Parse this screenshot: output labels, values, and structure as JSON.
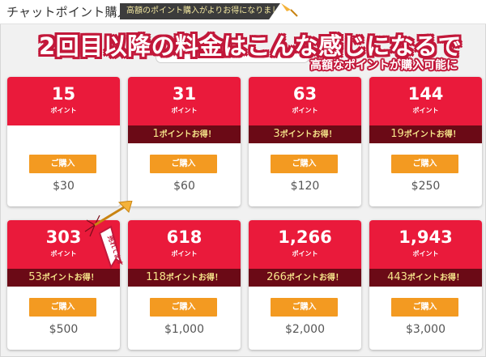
{
  "header": {
    "title": "チャットポイント購入",
    "promo": "高額のポイント購入がよりお得になりました！"
  },
  "overlay": {
    "headline": "2回目以降の料金はこんな感じになるで",
    "subline": "高額なポイントが購入可能に"
  },
  "hot_badge": "売れてます",
  "colors": {
    "card_header": "#ea1a3b",
    "bonus_strip": "#6b0a16",
    "bonus_text": "#f6e58a",
    "buy_button": "#f39a21"
  },
  "plans": [
    {
      "points": "15",
      "unit": "ポイント",
      "bonus_num": "",
      "bonus_text": "",
      "buy": "ご購入",
      "price": "$30"
    },
    {
      "points": "31",
      "unit": "ポイント",
      "bonus_num": "1",
      "bonus_text": "ポイントお得！",
      "buy": "ご購入",
      "price": "$60"
    },
    {
      "points": "63",
      "unit": "ポイント",
      "bonus_num": "3",
      "bonus_text": "ポイントお得！",
      "buy": "ご購入",
      "price": "$120"
    },
    {
      "points": "144",
      "unit": "ポイント",
      "bonus_num": "19",
      "bonus_text": "ポイントお得！",
      "buy": "ご購入",
      "price": "$250"
    },
    {
      "points": "303",
      "unit": "ポイント",
      "bonus_num": "53",
      "bonus_text": "ポイントお得！",
      "buy": "ご購入",
      "price": "$500"
    },
    {
      "points": "618",
      "unit": "ポイント",
      "bonus_num": "118",
      "bonus_text": "ポイントお得！",
      "buy": "ご購入",
      "price": "$1,000"
    },
    {
      "points": "1,266",
      "unit": "ポイント",
      "bonus_num": "266",
      "bonus_text": "ポイントお得！",
      "buy": "ご購入",
      "price": "$2,000"
    },
    {
      "points": "1,943",
      "unit": "ポイント",
      "bonus_num": "443",
      "bonus_text": "ポイントお得！",
      "buy": "ご購入",
      "price": "$3,000"
    }
  ]
}
